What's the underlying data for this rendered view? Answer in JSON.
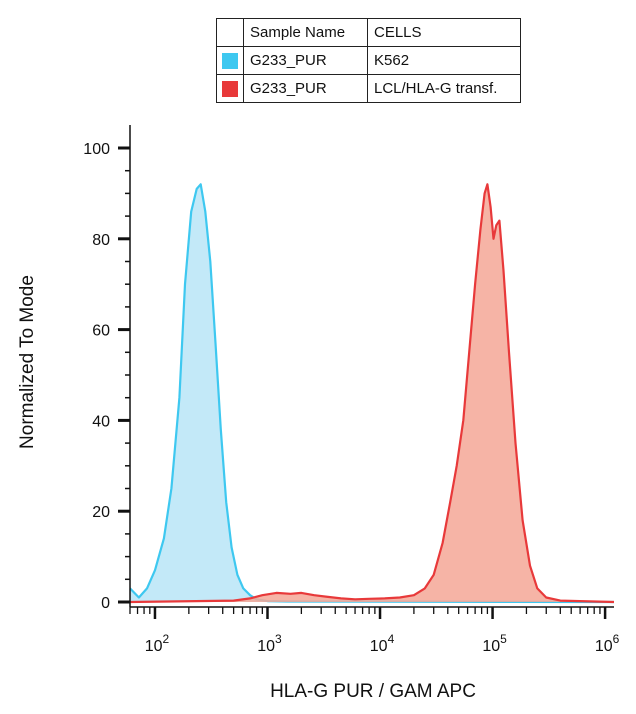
{
  "legend": {
    "header": [
      "",
      "Sample Name",
      "CELLS"
    ],
    "rows": [
      {
        "sample": "G233_PUR",
        "cells": "K562",
        "color": "#3ec8f0"
      },
      {
        "sample": "G233_PUR",
        "cells": "LCL/HLA-G transf.",
        "color": "#e8393a"
      }
    ]
  },
  "chart_data": {
    "type": "area",
    "title": "",
    "xlabel": "HLA-G PUR / GAM APC",
    "ylabel": "Normalized To Mode",
    "x_scale": "log",
    "xlim": [
      60,
      1200000
    ],
    "ylim": [
      0,
      105
    ],
    "y_ticks": [
      "0",
      "20",
      "40",
      "60",
      "80",
      "100"
    ],
    "x_ticks": [
      {
        "base": "10",
        "exp": "2",
        "value": 100
      },
      {
        "base": "10",
        "exp": "3",
        "value": 1000
      },
      {
        "base": "10",
        "exp": "4",
        "value": 10000
      },
      {
        "base": "10",
        "exp": "5",
        "value": 100000
      },
      {
        "base": "10",
        "exp": "6",
        "value": 1000000
      }
    ],
    "series": [
      {
        "cells": "K562",
        "line_color": "#3ec8f0",
        "fill_color": "#b8e5f7",
        "points": [
          [
            60,
            3
          ],
          [
            72,
            1
          ],
          [
            85,
            3
          ],
          [
            100,
            7
          ],
          [
            120,
            14
          ],
          [
            140,
            25
          ],
          [
            165,
            45
          ],
          [
            185,
            70
          ],
          [
            210,
            86
          ],
          [
            235,
            91
          ],
          [
            255,
            92
          ],
          [
            280,
            86
          ],
          [
            310,
            75
          ],
          [
            345,
            57
          ],
          [
            385,
            38
          ],
          [
            430,
            22
          ],
          [
            480,
            12
          ],
          [
            540,
            6
          ],
          [
            610,
            3
          ],
          [
            700,
            1.5
          ],
          [
            800,
            0.6
          ],
          [
            1000,
            0.2
          ],
          [
            1500,
            0.1
          ],
          [
            1200000,
            0
          ]
        ]
      },
      {
        "cells": "LCL/HLA-G transf.",
        "line_color": "#e8393a",
        "fill_color": "#f5a797",
        "points": [
          [
            60,
            0
          ],
          [
            500,
            0.3
          ],
          [
            700,
            0.8
          ],
          [
            900,
            1.5
          ],
          [
            1200,
            2
          ],
          [
            1600,
            1.8
          ],
          [
            2000,
            2
          ],
          [
            2600,
            1.5
          ],
          [
            3300,
            1.2
          ],
          [
            4500,
            0.8
          ],
          [
            6000,
            0.6
          ],
          [
            8000,
            0.7
          ],
          [
            11000,
            0.8
          ],
          [
            15000,
            1
          ],
          [
            20000,
            1.5
          ],
          [
            25000,
            3
          ],
          [
            30000,
            6
          ],
          [
            36000,
            13
          ],
          [
            42000,
            22
          ],
          [
            48000,
            30
          ],
          [
            55000,
            40
          ],
          [
            62000,
            55
          ],
          [
            70000,
            70
          ],
          [
            78000,
            82
          ],
          [
            85000,
            90
          ],
          [
            90000,
            92
          ],
          [
            96000,
            87
          ],
          [
            102000,
            80
          ],
          [
            108000,
            83
          ],
          [
            115000,
            84
          ],
          [
            125000,
            73
          ],
          [
            140000,
            55
          ],
          [
            160000,
            35
          ],
          [
            185000,
            18
          ],
          [
            215000,
            8
          ],
          [
            250000,
            3
          ],
          [
            300000,
            1
          ],
          [
            400000,
            0.3
          ],
          [
            1200000,
            0
          ]
        ]
      }
    ]
  }
}
